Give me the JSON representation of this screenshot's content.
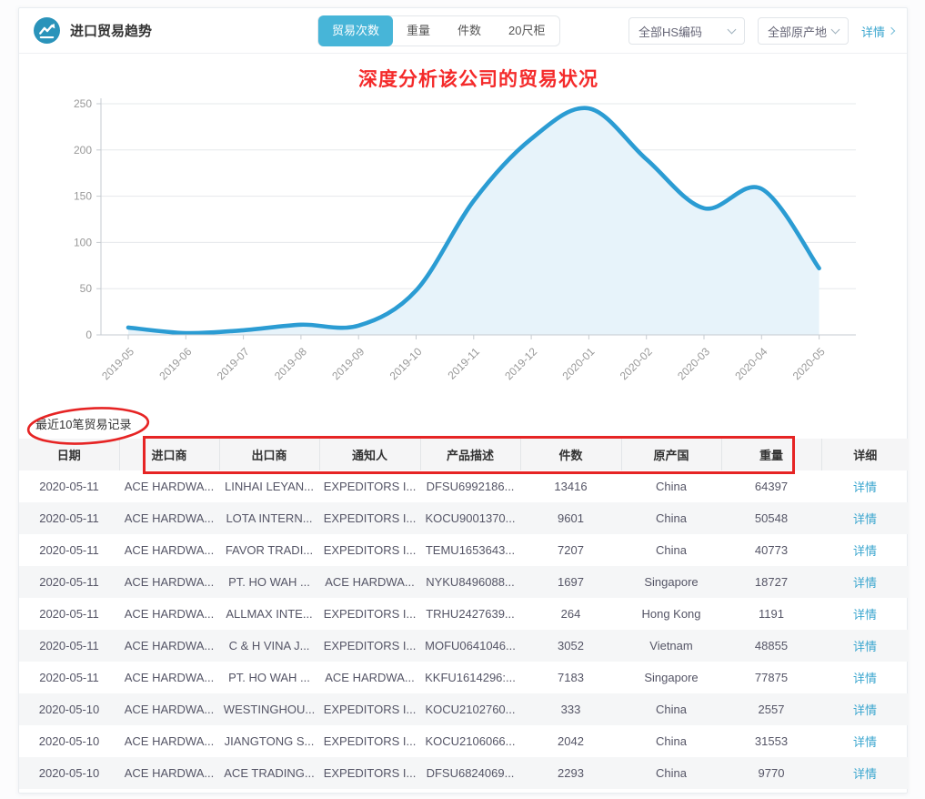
{
  "header": {
    "title": "进口贸易趋势",
    "tabs": [
      {
        "label": "贸易次数",
        "active": true
      },
      {
        "label": "重量",
        "active": false
      },
      {
        "label": "件数",
        "active": false
      },
      {
        "label": "20尺柜",
        "active": false
      }
    ],
    "filters": {
      "hs_code": "全部HS编码",
      "origin": "全部原产地"
    },
    "detail_link": "详情"
  },
  "annotations": {
    "chart_note": "深度分析该公司的贸易状况"
  },
  "chart_data": {
    "type": "area",
    "x": [
      "2019-05",
      "2019-06",
      "2019-07",
      "2019-08",
      "2019-09",
      "2019-10",
      "2019-11",
      "2019-12",
      "2020-01",
      "2020-02",
      "2020-03",
      "2020-04",
      "2020-05"
    ],
    "series": [
      {
        "name": "贸易次数",
        "values": [
          8,
          2,
          5,
          11,
          10,
          48,
          145,
          212,
          245,
          190,
          137,
          158,
          72
        ]
      }
    ],
    "ylim": [
      0,
      250
    ],
    "yticks": [
      0,
      50,
      100,
      150,
      200,
      250
    ],
    "grid": true,
    "legend": "none",
    "line_color": "#2b9cd3",
    "fill_color": "#e7f3fa",
    "axis_color": "#c6cbd0",
    "grid_color": "#e6e8eb",
    "tick_label_color": "#999"
  },
  "records": {
    "title": "最近10笔贸易记录",
    "columns": [
      "日期",
      "进口商",
      "出口商",
      "通知人",
      "产品描述",
      "件数",
      "原产国",
      "重量",
      "详细"
    ],
    "detail_label": "详情",
    "rows": [
      {
        "date": "2020-05-11",
        "importer": "ACE HARDWA...",
        "exporter": "LINHAI LEYAN...",
        "notify": "EXPEDITORS I...",
        "product": "DFSU6992186...",
        "pieces": "13416",
        "origin": "China",
        "weight": "64397"
      },
      {
        "date": "2020-05-11",
        "importer": "ACE HARDWA...",
        "exporter": "LOTA INTERN...",
        "notify": "EXPEDITORS I...",
        "product": "KOCU9001370...",
        "pieces": "9601",
        "origin": "China",
        "weight": "50548"
      },
      {
        "date": "2020-05-11",
        "importer": "ACE HARDWA...",
        "exporter": "FAVOR TRADI...",
        "notify": "EXPEDITORS I...",
        "product": "TEMU1653643...",
        "pieces": "7207",
        "origin": "China",
        "weight": "40773"
      },
      {
        "date": "2020-05-11",
        "importer": "ACE HARDWA...",
        "exporter": "PT. HO WAH ...",
        "notify": "ACE HARDWA...",
        "product": "NYKU8496088...",
        "pieces": "1697",
        "origin": "Singapore",
        "weight": "18727"
      },
      {
        "date": "2020-05-11",
        "importer": "ACE HARDWA...",
        "exporter": "ALLMAX INTE...",
        "notify": "EXPEDITORS I...",
        "product": "TRHU2427639...",
        "pieces": "264",
        "origin": "Hong Kong",
        "weight": "1191"
      },
      {
        "date": "2020-05-11",
        "importer": "ACE HARDWA...",
        "exporter": "C & H VINA J...",
        "notify": "EXPEDITORS I...",
        "product": "MOFU0641046...",
        "pieces": "3052",
        "origin": "Vietnam",
        "weight": "48855"
      },
      {
        "date": "2020-05-11",
        "importer": "ACE HARDWA...",
        "exporter": "PT. HO WAH ...",
        "notify": "ACE HARDWA...",
        "product": "KKFU1614296:...",
        "pieces": "7183",
        "origin": "Singapore",
        "weight": "77875"
      },
      {
        "date": "2020-05-10",
        "importer": "ACE HARDWA...",
        "exporter": "WESTINGHOU...",
        "notify": "EXPEDITORS I...",
        "product": "KOCU2102760...",
        "pieces": "333",
        "origin": "China",
        "weight": "2557"
      },
      {
        "date": "2020-05-10",
        "importer": "ACE HARDWA...",
        "exporter": "JIANGTONG S...",
        "notify": "EXPEDITORS I...",
        "product": "KOCU2106066...",
        "pieces": "2042",
        "origin": "China",
        "weight": "31553"
      },
      {
        "date": "2020-05-10",
        "importer": "ACE HARDWA...",
        "exporter": "ACE TRADING...",
        "notify": "EXPEDITORS I...",
        "product": "DFSU6824069...",
        "pieces": "2293",
        "origin": "China",
        "weight": "9770"
      }
    ]
  }
}
